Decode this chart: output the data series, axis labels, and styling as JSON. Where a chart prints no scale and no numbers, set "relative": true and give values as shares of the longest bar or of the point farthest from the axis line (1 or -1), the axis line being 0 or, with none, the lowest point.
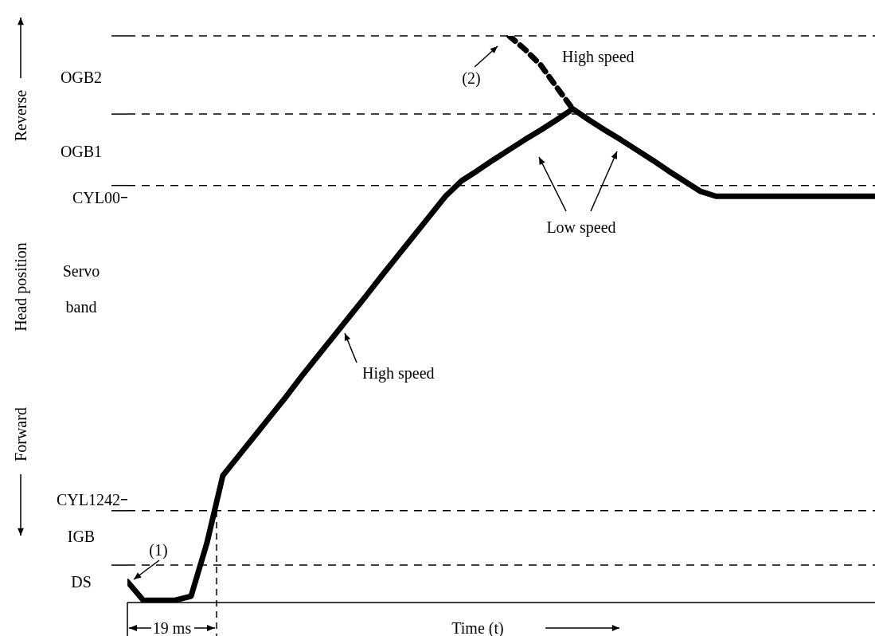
{
  "chart_data": {
    "type": "line",
    "relative": true,
    "xlabel": "Time (t)",
    "categories": [
      null,
      null,
      null,
      null,
      null,
      null,
      null,
      null,
      null,
      null,
      null,
      null,
      null,
      null,
      null,
      null,
      null,
      null,
      null,
      null,
      null,
      null,
      null,
      null,
      null,
      null,
      null,
      null,
      null,
      null,
      null,
      null,
      null,
      null,
      null,
      null,
      null,
      null,
      null,
      null,
      null,
      null,
      null,
      null,
      null,
      null,
      null,
      null
    ],
    "series": [
      {
        "color": "#000000",
        "line_style": "solid",
        "values": [
          0.037,
          0.004,
          0.004,
          0.004,
          0.011,
          0.105,
          0.224,
          0.259,
          0.294,
          0.329,
          0.364,
          0.401,
          0.436,
          0.471,
          0.506,
          0.541,
          0.577,
          0.612,
          0.647,
          0.682,
          0.717,
          0.744,
          0.762,
          0.781,
          0.799,
          0.817,
          0.834,
          0.852,
          0.871,
          0.852,
          0.834,
          0.817,
          0.799,
          0.781,
          0.762,
          0.744,
          0.726,
          0.717,
          0.717,
          0.717,
          0.717,
          0.717,
          0.717,
          0.717,
          0.717,
          0.717,
          0.717,
          0.717
        ]
      },
      {
        "color": "#000000",
        "line_style": "dashed",
        "values": [
          null,
          null,
          null,
          null,
          null,
          null,
          null,
          null,
          null,
          null,
          null,
          null,
          null,
          null,
          null,
          null,
          null,
          null,
          null,
          null,
          null,
          null,
          null,
          null,
          1.0,
          0.976,
          0.948,
          0.909,
          0.871,
          null,
          null,
          null,
          null,
          null,
          null,
          null,
          null,
          null,
          null,
          null,
          null,
          null,
          null,
          null,
          null,
          null,
          null,
          null
        ]
      }
    ],
    "ref_lines": [
      {
        "axis": "y",
        "value": 1.0,
        "label": null,
        "line_style": "dashed"
      },
      {
        "axis": "y",
        "value": 0.862,
        "label": null,
        "line_style": "dashed"
      },
      {
        "axis": "y",
        "value": 0.736,
        "label": "CYL00",
        "line_style": "dashed"
      },
      {
        "axis": "y",
        "value": 0.162,
        "label": "CYL1242",
        "line_style": "dashed"
      },
      {
        "axis": "y",
        "value": 0.066,
        "label": null,
        "line_style": "dashed"
      }
    ],
    "annotations": [
      "(1)",
      "(2)",
      "High speed",
      "Low speed",
      "High speed",
      "19 ms",
      "Reverse",
      "Forward",
      "Head position",
      "OGB2",
      "OGB1",
      "Servo band",
      "IGB",
      "DS"
    ],
    "marker": "none",
    "grid": false,
    "legend": false
  }
}
